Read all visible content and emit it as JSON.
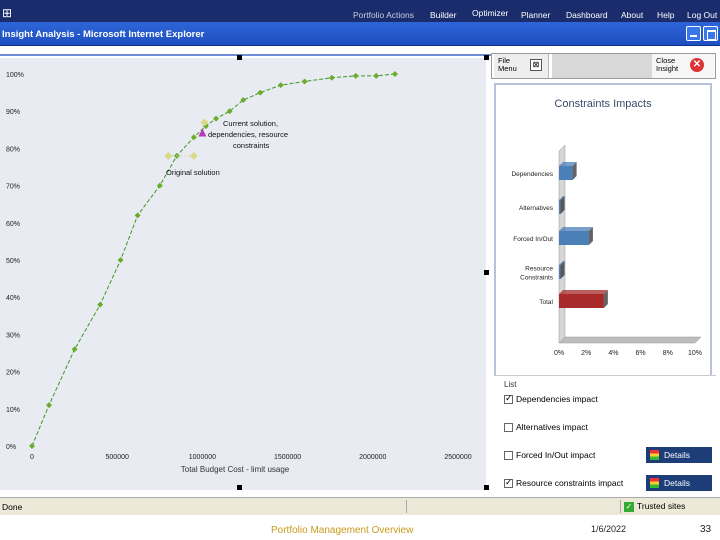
{
  "nav": {
    "logo_icon": "windows-logo-icon",
    "items": [
      "Portfolio Actions",
      "Builder",
      "Optimizer",
      "Planner",
      "Dashboard",
      "About",
      "Help",
      "Log Out"
    ]
  },
  "window": {
    "title": "Insight Analysis - Microsoft Internet Explorer"
  },
  "chart": {
    "y_ticks": [
      "100%",
      "90%",
      "80%",
      "70%",
      "60%",
      "50%",
      "40%",
      "30%",
      "20%",
      "10%",
      "0%"
    ],
    "x_ticks": [
      "0",
      "500000",
      "1000000",
      "1500000",
      "2000000",
      "2500000"
    ],
    "xlabel": "Total Budget Cost - limit usage",
    "annotation_current": [
      "Current solution,",
      "dependencies, resource",
      "constraints"
    ],
    "annotation_original": "Original solution",
    "colors": {
      "line": "#3a9a1c",
      "marker": "#6aad2c",
      "highlight": "#d9d98a",
      "current": "#b83ab8"
    }
  },
  "chart_data": {
    "type": "line",
    "x": [
      0,
      100000,
      250000,
      400000,
      520000,
      620000,
      750000,
      850000,
      950000,
      1020000,
      1080000,
      1160000,
      1240000,
      1340000,
      1460000,
      1600000,
      1760000,
      1900000,
      2020000,
      2130000
    ],
    "series": [
      {
        "values": [
          0,
          11,
          26,
          38,
          50,
          62,
          70,
          78,
          83,
          86,
          88,
          90,
          93,
          95,
          97,
          98,
          99,
          99.5,
          99.5,
          100
        ]
      }
    ],
    "points": [
      {
        "label": "Current solution, dependencies, resource constraints",
        "x": 1000000,
        "y": 84
      },
      {
        "label": "Original solution",
        "x": 950000,
        "y": 78
      }
    ],
    "xlabel": "Total Budget Cost - limit usage",
    "ylabel": "",
    "xlim": [
      0,
      2500000
    ],
    "ylim": [
      0,
      100
    ],
    "grid": false
  },
  "panel": {
    "file_menu": "File Menu",
    "close_insight": "Close Insight",
    "impacts_title": "Constraints Impacts",
    "impacts": {
      "categories": [
        "Dependencies",
        "Alternatives",
        "Forced In/Out",
        "Resource Constraints",
        "Total"
      ],
      "values": [
        1.0,
        0.1,
        2.2,
        0.1,
        3.3
      ],
      "colors": [
        "#4a7fb8",
        "#4a7fb8",
        "#4a7fb8",
        "#4a7fb8",
        "#a82a2a"
      ],
      "x_ticks": [
        "0%",
        "2%",
        "4%",
        "6%",
        "8%",
        "10%"
      ]
    },
    "legend_label": "List",
    "checks": [
      {
        "label": "Dependencies impact",
        "checked": true,
        "details": ""
      },
      {
        "label": "Alternatives impact",
        "checked": false,
        "details": ""
      },
      {
        "label": "Forced In/Out impact",
        "checked": false,
        "details": "Details"
      },
      {
        "label": "Resource constraints impact",
        "checked": true,
        "details": "Details"
      }
    ]
  },
  "status": {
    "done": "Done",
    "trusted": "Trusted sites"
  },
  "slide_footer": {
    "title": "Portfolio Management Overview",
    "date": "1/6/2022",
    "page": "33"
  }
}
